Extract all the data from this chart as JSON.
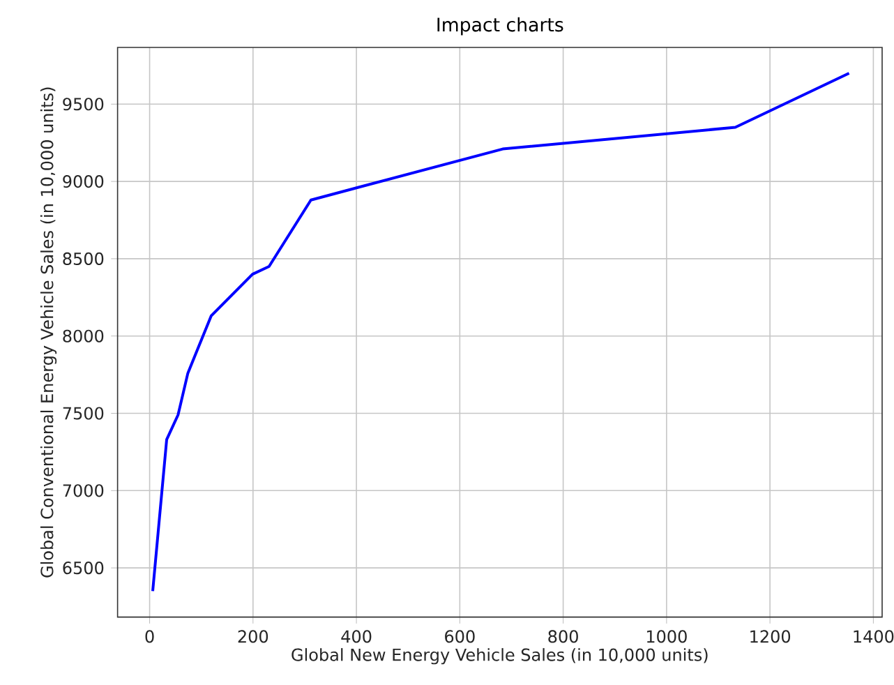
{
  "chart_data": {
    "type": "line",
    "title": "Impact charts",
    "xlabel": "Global New Energy Vehicle Sales (in 10,000 units)",
    "ylabel": "Global Conventional Energy Vehicle Sales (in 10,000 units)",
    "x": [
      6,
      33,
      55,
      74,
      119,
      199,
      231,
      312,
      683,
      1133,
      1353
    ],
    "series": [
      {
        "color": "#0000ff",
        "values": [
          6350,
          7330,
          7490,
          7760,
          8130,
          8400,
          8450,
          8880,
          9210,
          9350,
          9700
        ]
      }
    ],
    "xlim": [
      -62,
      1417
    ],
    "ylim": [
      6182,
      9867
    ],
    "xticks": [
      0,
      200,
      400,
      600,
      800,
      1000,
      1200,
      1400
    ],
    "yticks": [
      6500,
      7000,
      7500,
      8000,
      8500,
      9000,
      9500
    ],
    "grid": true,
    "marker": "none",
    "line_style": "solid"
  }
}
